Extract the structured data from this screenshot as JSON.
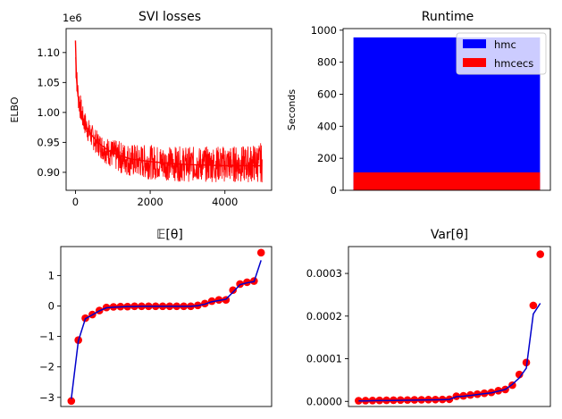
{
  "chart_data": [
    {
      "type": "line",
      "title": "SVI losses",
      "ylabel": "ELBO",
      "xlabel": "",
      "y_offset_label": "1e6",
      "y_scale": 1000000,
      "xlim": [
        -250,
        5250
      ],
      "ylim": [
        870000,
        1140000
      ],
      "xticks": [
        0,
        2000,
        4000
      ],
      "yticks": [
        900000,
        950000,
        1000000,
        1050000,
        1100000
      ],
      "ytick_labels": [
        "0.90",
        "0.95",
        "1.00",
        "1.05",
        "1.10"
      ],
      "color": "#ff0000",
      "series": [
        {
          "x": [
            0,
            25,
            50,
            75,
            100,
            150,
            200,
            300,
            400,
            500,
            600,
            800,
            1000,
            1200,
            1500,
            2000,
            2500,
            3000,
            3500,
            4000,
            4500,
            5000
          ],
          "y": [
            1120000,
            1060000,
            1040000,
            1025000,
            1015000,
            1000000,
            990000,
            975000,
            965000,
            957000,
            950000,
            940000,
            932000,
            928000,
            922000,
            918000,
            915000,
            913000,
            912000,
            911000,
            911000,
            911000
          ],
          "band_low": [
            1060000,
            1040000,
            1020000,
            1005000,
            995000,
            982000,
            970000,
            955000,
            942000,
            935000,
            928000,
            915000,
            905000,
            898000,
            892000,
            888000,
            886000,
            884000,
            884000,
            883000,
            883000,
            883000
          ],
          "band_high": [
            1125000,
            1090000,
            1065000,
            1050000,
            1040000,
            1025000,
            1010000,
            995000,
            985000,
            975000,
            968000,
            960000,
            955000,
            952000,
            948000,
            946000,
            944000,
            943000,
            943000,
            945000,
            944000,
            950000
          ]
        }
      ]
    },
    {
      "type": "bar",
      "title": "Runtime",
      "ylabel": "Seconds",
      "ylim": [
        0,
        1010
      ],
      "yticks": [
        0,
        200,
        400,
        600,
        800,
        1000
      ],
      "series": [
        {
          "name": "hmc",
          "value": 955,
          "color": "#0000ff"
        },
        {
          "name": "hmcecs",
          "value": 112,
          "color": "#ff0000"
        }
      ],
      "legend": "top-right"
    },
    {
      "type": "line",
      "title": "𝔼[θ]",
      "ylim": [
        -3.3,
        1.95
      ],
      "yticks": [
        -3,
        -2,
        -1,
        0,
        1
      ],
      "ytick_labels": [
        "−3",
        "−2",
        "−1",
        "0",
        "1"
      ],
      "line_color": "#0000cc",
      "point_color": "#ff0000",
      "points": [
        -3.12,
        -1.12,
        -0.4,
        -0.28,
        -0.15,
        -0.05,
        -0.03,
        -0.02,
        -0.02,
        -0.01,
        -0.01,
        -0.01,
        -0.01,
        -0.01,
        -0.01,
        -0.01,
        -0.01,
        -0.01,
        0.02,
        0.08,
        0.16,
        0.2,
        0.2,
        0.52,
        0.72,
        0.78,
        0.82,
        1.75
      ],
      "line": [
        -3.05,
        -1.15,
        -0.42,
        -0.29,
        -0.16,
        -0.06,
        -0.04,
        -0.03,
        -0.02,
        -0.02,
        -0.01,
        -0.01,
        -0.01,
        -0.01,
        -0.01,
        -0.01,
        -0.01,
        -0.01,
        0.01,
        0.06,
        0.14,
        0.18,
        0.22,
        0.45,
        0.7,
        0.76,
        0.8,
        1.5
      ]
    },
    {
      "type": "line",
      "title": "Var[θ]",
      "ylim": [
        -1.2e-05,
        0.000363
      ],
      "yticks": [
        0,
        0.0001,
        0.0002,
        0.0003
      ],
      "ytick_labels": [
        "0.0000",
        "0.0001",
        "0.0002",
        "0.0003"
      ],
      "line_color": "#0000cc",
      "point_color": "#ff0000",
      "points": [
        1.5e-06,
        1.8e-06,
        2e-06,
        2.2e-06,
        2.5e-06,
        2.8e-06,
        3e-06,
        3.2e-06,
        3.5e-06,
        3.7e-06,
        4e-06,
        4.2e-06,
        4.5e-06,
        5e-06,
        1.2e-05,
        1.3e-05,
        1.5e-05,
        1.7e-05,
        1.9e-05,
        2.1e-05,
        2.5e-05,
        2.8e-05,
        3.8e-05,
        6.3e-05,
        9.1e-05,
        0.000225,
        0.000345
      ],
      "line": [
        1e-06,
        1.2e-06,
        1.5e-06,
        1.8e-06,
        2e-06,
        2.2e-06,
        2.5e-06,
        2.8e-06,
        3e-06,
        3.2e-06,
        3.5e-06,
        3.8e-06,
        4e-06,
        4.5e-06,
        1.1e-05,
        1.2e-05,
        1.4e-05,
        1.6e-05,
        1.8e-05,
        2e-05,
        2.4e-05,
        2.8e-05,
        4e-05,
        5.5e-05,
        7.8e-05,
        0.000205,
        0.00023
      ]
    }
  ]
}
